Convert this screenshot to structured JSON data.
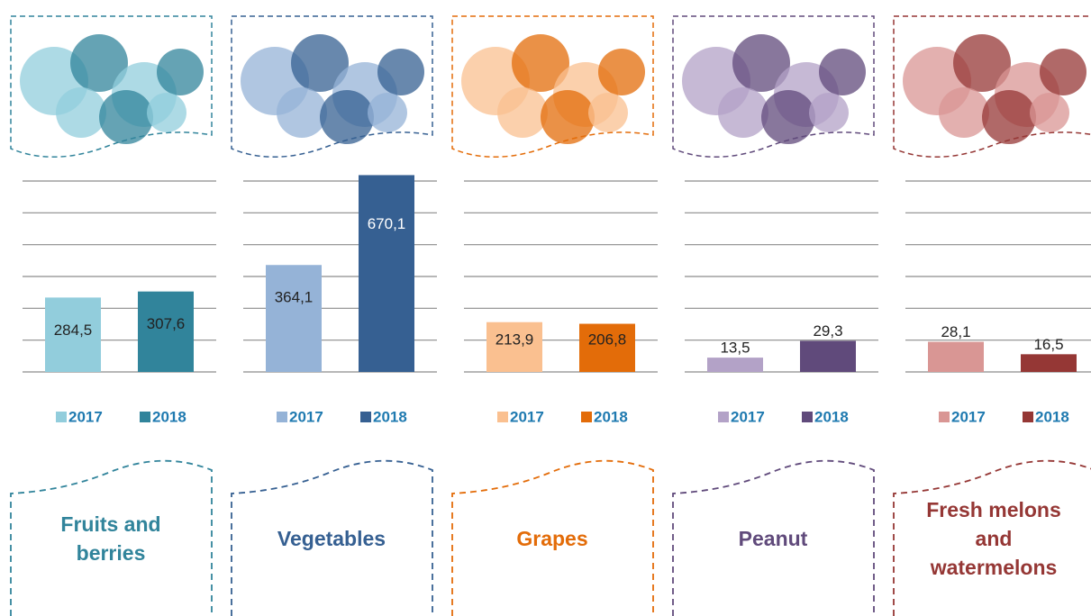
{
  "chart_data": [
    {
      "type": "bar",
      "name": "Fruits and berries",
      "ylim": [
        0,
        730
      ],
      "grid": true,
      "series": [
        {
          "name": "2017",
          "color": "#92cddc",
          "values": [
            284.5
          ],
          "value_labels": [
            "284,5"
          ]
        },
        {
          "name": "2018",
          "color": "#31849b",
          "values": [
            307.6
          ],
          "value_labels": [
            "307,6"
          ]
        }
      ]
    },
    {
      "type": "bar",
      "name": "Vegetables",
      "ylim": [
        0,
        650
      ],
      "grid": true,
      "series": [
        {
          "name": "2017",
          "color": "#95b3d7",
          "values": [
            364.1
          ],
          "value_labels": [
            "364,1"
          ]
        },
        {
          "name": "2018",
          "color": "#366092",
          "values": [
            670.1
          ],
          "value_labels": [
            "670,1"
          ]
        }
      ]
    },
    {
      "type": "bar",
      "name": "Grapes",
      "ylim": [
        0,
        820
      ],
      "grid": true,
      "series": [
        {
          "name": "2017",
          "color": "#fac090",
          "values": [
            213.9
          ],
          "value_labels": [
            "213,9"
          ]
        },
        {
          "name": "2018",
          "color": "#e36c09",
          "values": [
            206.8
          ],
          "value_labels": [
            "206,8"
          ]
        }
      ]
    },
    {
      "type": "bar",
      "name": "Peanut",
      "ylim": [
        0,
        180
      ],
      "grid": true,
      "series": [
        {
          "name": "2017",
          "color": "#b3a2c7",
          "values": [
            13.5
          ],
          "value_labels": [
            "13,5"
          ]
        },
        {
          "name": "2018",
          "color": "#604a7b",
          "values": [
            29.3
          ],
          "value_labels": [
            "29,3"
          ]
        }
      ]
    },
    {
      "type": "bar",
      "name": "Fresh melons and watermelons",
      "ylim": [
        0,
        178
      ],
      "grid": true,
      "series": [
        {
          "name": "2017",
          "color": "#d99694",
          "values": [
            28.1
          ],
          "value_labels": [
            "28,1"
          ]
        },
        {
          "name": "2018",
          "color": "#953735",
          "values": [
            16.5
          ],
          "value_labels": [
            "16,5"
          ]
        }
      ]
    }
  ]
}
